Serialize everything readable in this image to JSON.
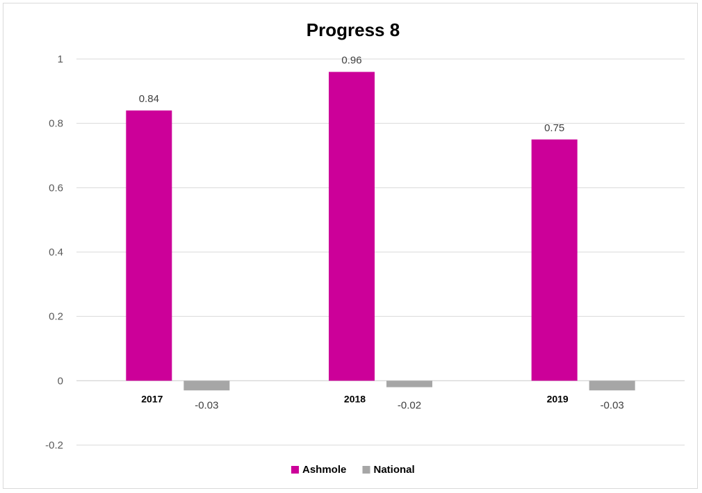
{
  "chart_data": {
    "type": "bar",
    "title": "Progress 8",
    "categories": [
      "2017",
      "2018",
      "2019"
    ],
    "series": [
      {
        "name": "Ashmole",
        "values": [
          0.84,
          0.96,
          0.75
        ],
        "labels": [
          "0.84",
          "0.96",
          "0.75"
        ],
        "color": "#cc0099"
      },
      {
        "name": "National",
        "values": [
          -0.03,
          -0.02,
          -0.03
        ],
        "labels": [
          "-0.03",
          "-0.02",
          "-0.03"
        ],
        "color": "#a6a6a6"
      }
    ],
    "ylim": [
      -0.2,
      1
    ],
    "yticks": [
      1,
      0.8,
      0.6,
      0.4,
      0.2,
      0,
      -0.2
    ],
    "ytick_labels": [
      "1",
      "0.8",
      "0.6",
      "0.4",
      "0.2",
      "0",
      "-0.2"
    ],
    "grid": true,
    "legend_position": "bottom"
  }
}
